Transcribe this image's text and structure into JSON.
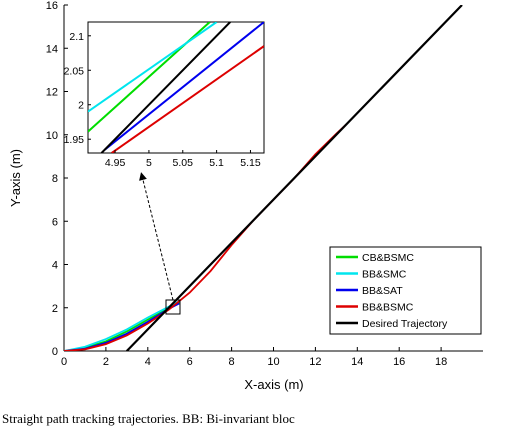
{
  "chart_data": [
    {
      "type": "line",
      "xlabel": "X-axis (m)",
      "ylabel": "Y-axis (m)",
      "xlim": [
        0,
        20
      ],
      "ylim": [
        0,
        16
      ],
      "xticks": [
        0,
        2,
        4,
        6,
        8,
        10,
        12,
        14,
        16,
        18
      ],
      "yticks": [
        0,
        2,
        4,
        6,
        8,
        10,
        12,
        14,
        16
      ],
      "grid": false,
      "legend_position": "bottom-right",
      "series": [
        {
          "name": "CB&BSMC",
          "color": "#00dd00",
          "x": [
            0,
            1,
            2,
            3,
            4,
            5,
            5.5
          ],
          "y": [
            0,
            0.15,
            0.45,
            0.9,
            1.45,
            1.98,
            2.25
          ]
        },
        {
          "name": "BB&SMC",
          "color": "#00e5ee",
          "x": [
            0,
            1,
            2,
            3,
            4,
            5,
            5.5
          ],
          "y": [
            0,
            0.2,
            0.55,
            1.0,
            1.55,
            2.05,
            2.3
          ]
        },
        {
          "name": "BB&SAT",
          "color": "#0000ee",
          "x": [
            0,
            1,
            2,
            3,
            4,
            5,
            5.5
          ],
          "y": [
            0,
            0.1,
            0.38,
            0.8,
            1.35,
            1.95,
            2.2
          ]
        },
        {
          "name": "BB&BSMC",
          "color": "#dd0000",
          "x": [
            0,
            1,
            2,
            3,
            4,
            5,
            6,
            7,
            7.5,
            8,
            9,
            10,
            11,
            12,
            13,
            13.5
          ],
          "y": [
            0,
            0.08,
            0.32,
            0.72,
            1.27,
            1.91,
            2.7,
            3.7,
            4.3,
            4.9,
            6.0,
            7.0,
            8.0,
            9.1,
            10.05,
            10.5
          ]
        },
        {
          "name": "Desired Trajectory",
          "color": "#000000",
          "x": [
            3,
            19
          ],
          "y": [
            0,
            16
          ]
        }
      ]
    },
    {
      "type": "line",
      "xlim": [
        4.91,
        5.17
      ],
      "ylim": [
        1.93,
        2.12
      ],
      "xticks": [
        4.95,
        5,
        5.05,
        5.1,
        5.15
      ],
      "yticks": [
        1.95,
        2,
        2.05,
        2.1
      ],
      "series": [
        {
          "name": "CB&BSMC",
          "color": "#00dd00",
          "x": [
            4.91,
            5.09
          ],
          "y": [
            1.961,
            2.12
          ]
        },
        {
          "name": "BB&SMC",
          "color": "#00e5ee",
          "x": [
            4.91,
            5.1
          ],
          "y": [
            1.99,
            2.12
          ]
        },
        {
          "name": "BB&SAT",
          "color": "#0000ee",
          "x": [
            4.935,
            5.17
          ],
          "y": [
            1.935,
            2.12
          ]
        },
        {
          "name": "BB&BSMC",
          "color": "#dd0000",
          "x": [
            4.945,
            5.17
          ],
          "y": [
            1.93,
            2.085
          ]
        },
        {
          "name": "Desired Trajectory",
          "color": "#000000",
          "x": [
            4.93,
            5.12
          ],
          "y": [
            1.93,
            2.12
          ]
        }
      ]
    }
  ],
  "caption": "Straight path tracking trajectories. BB: Bi-invariant bloc"
}
